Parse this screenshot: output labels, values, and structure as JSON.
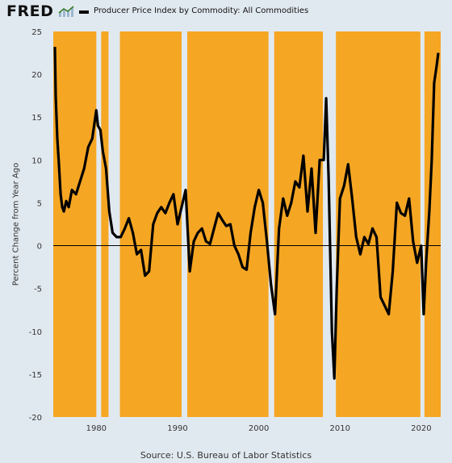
{
  "header": {
    "logo_text": "FRED",
    "logo_icon": "trend-line-icon",
    "legend_label": "Producer Price Index by Commodity: All Commodities"
  },
  "source": "Source: U.S. Bureau of Labor Statistics",
  "colors": {
    "background": "#e1e9f0",
    "recession_shading": "#f5a623",
    "series": "#000000",
    "zero_line": "#000000"
  },
  "chart_data": {
    "type": "line",
    "title": "Producer Price Index by Commodity: All Commodities",
    "ylabel": "Percent Change from Year Ago",
    "xlabel": "",
    "xlim": [
      1974.7,
      2022.4
    ],
    "ylim": [
      -20,
      25
    ],
    "xticks": [
      "1980",
      "1990",
      "2000",
      "2010",
      "2020"
    ],
    "yticks": [
      "25",
      "20",
      "15",
      "10",
      "5",
      "0",
      "-5",
      "-10",
      "-15",
      "-20"
    ],
    "grid": false,
    "legend_position": "top",
    "shaded_periods": [
      [
        1974.7,
        1980.0
      ],
      [
        1980.6,
        1981.5
      ],
      [
        1982.9,
        1990.5
      ],
      [
        1991.2,
        2001.2
      ],
      [
        2001.9,
        2007.9
      ],
      [
        2009.5,
        2019.9
      ],
      [
        2020.4,
        2022.4
      ]
    ],
    "series": [
      {
        "name": "Producer Price Index by Commodity: All Commodities",
        "x": [
          1974.9,
          1975.0,
          1975.2,
          1975.4,
          1975.6,
          1975.8,
          1976.0,
          1976.3,
          1976.6,
          1977.0,
          1977.5,
          1978.0,
          1978.5,
          1979.0,
          1979.5,
          1980.0,
          1980.2,
          1980.5,
          1980.8,
          1981.2,
          1981.6,
          1982.0,
          1982.5,
          1983.0,
          1983.5,
          1984.0,
          1984.5,
          1985.0,
          1985.5,
          1986.0,
          1986.5,
          1987.0,
          1987.5,
          1988.0,
          1988.5,
          1989.0,
          1989.5,
          1990.0,
          1990.5,
          1991.0,
          1991.5,
          1992.0,
          1992.5,
          1993.0,
          1993.5,
          1994.0,
          1994.5,
          1995.0,
          1995.5,
          1996.0,
          1996.5,
          1997.0,
          1997.5,
          1998.0,
          1998.5,
          1999.0,
          1999.5,
          2000.0,
          2000.5,
          2001.0,
          2001.5,
          2002.0,
          2002.5,
          2003.0,
          2003.5,
          2004.0,
          2004.5,
          2005.0,
          2005.5,
          2006.0,
          2006.5,
          2007.0,
          2007.5,
          2008.0,
          2008.3,
          2008.6,
          2009.0,
          2009.3,
          2009.6,
          2010.0,
          2010.5,
          2011.0,
          2011.5,
          2012.0,
          2012.5,
          2013.0,
          2013.5,
          2014.0,
          2014.5,
          2015.0,
          2015.5,
          2016.0,
          2016.5,
          2017.0,
          2017.5,
          2018.0,
          2018.5,
          2019.0,
          2019.5,
          2020.0,
          2020.3,
          2020.6,
          2021.0,
          2021.3,
          2021.6,
          2021.9,
          2022.1
        ],
        "values": [
          23.2,
          17.5,
          12.5,
          9.5,
          6.0,
          4.5,
          4.0,
          5.2,
          4.5,
          6.5,
          6.0,
          7.5,
          9.0,
          11.5,
          12.5,
          15.8,
          14.0,
          13.5,
          11.0,
          9.0,
          4.0,
          1.5,
          1.0,
          1.0,
          2.0,
          3.2,
          1.5,
          -1.0,
          -0.5,
          -3.5,
          -3.0,
          2.5,
          3.8,
          4.5,
          3.8,
          5.0,
          6.0,
          2.5,
          4.5,
          6.5,
          -3.0,
          0.5,
          1.5,
          2.0,
          0.5,
          0.2,
          2.0,
          3.8,
          3.0,
          2.3,
          2.5,
          0.0,
          -1.0,
          -2.5,
          -2.8,
          1.5,
          4.5,
          6.5,
          5.0,
          0.5,
          -4.5,
          -8.0,
          2.0,
          5.5,
          3.5,
          5.0,
          7.5,
          6.8,
          10.5,
          4.0,
          9.0,
          1.5,
          10.0,
          10.0,
          17.2,
          8.0,
          -10.0,
          -15.5,
          -5.0,
          5.5,
          7.0,
          9.5,
          5.5,
          1.0,
          -1.0,
          1.0,
          0.2,
          2.0,
          1.0,
          -6.0,
          -7.0,
          -8.0,
          -3.0,
          5.0,
          3.8,
          3.5,
          5.5,
          0.5,
          -2.0,
          0.0,
          -8.0,
          -2.0,
          4.0,
          10.0,
          19.0,
          21.0,
          22.5
        ]
      }
    ]
  }
}
